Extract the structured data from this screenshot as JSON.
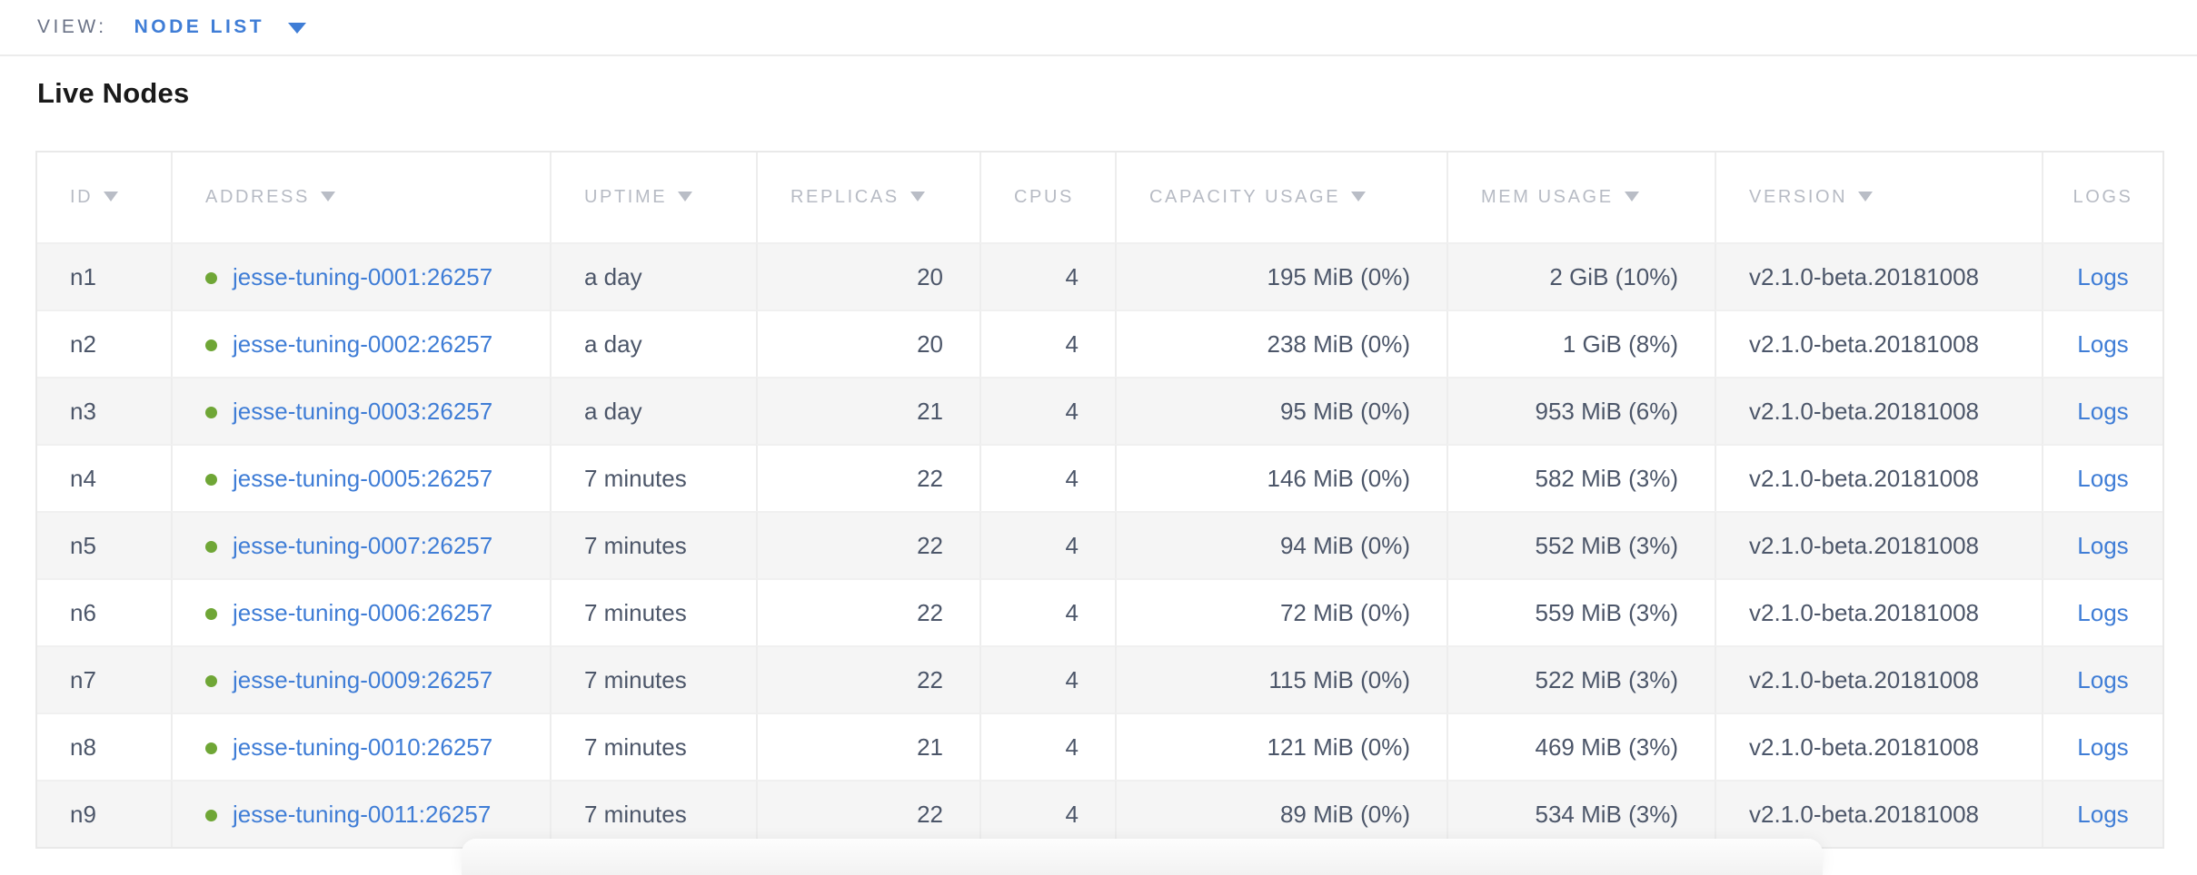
{
  "view_bar": {
    "label": "VIEW:",
    "selected": "NODE LIST"
  },
  "section": {
    "title": "Live Nodes"
  },
  "table": {
    "columns": [
      {
        "key": "id",
        "label": "ID",
        "sortable": true
      },
      {
        "key": "address",
        "label": "ADDRESS",
        "sortable": true
      },
      {
        "key": "uptime",
        "label": "UPTIME",
        "sortable": true
      },
      {
        "key": "replicas",
        "label": "REPLICAS",
        "sortable": true
      },
      {
        "key": "cpus",
        "label": "CPUS",
        "sortable": false
      },
      {
        "key": "capacity",
        "label": "CAPACITY USAGE",
        "sortable": true
      },
      {
        "key": "mem",
        "label": "MEM USAGE",
        "sortable": true
      },
      {
        "key": "version",
        "label": "VERSION",
        "sortable": true
      },
      {
        "key": "logs",
        "label": "LOGS",
        "sortable": false
      }
    ],
    "rows": [
      {
        "id": "n1",
        "status": "live",
        "address": "jesse-tuning-0001:26257",
        "uptime": "a day",
        "replicas": "20",
        "cpus": "4",
        "capacity": "195 MiB (0%)",
        "mem": "2 GiB (10%)",
        "version": "v2.1.0-beta.20181008",
        "logs_label": "Logs"
      },
      {
        "id": "n2",
        "status": "live",
        "address": "jesse-tuning-0002:26257",
        "uptime": "a day",
        "replicas": "20",
        "cpus": "4",
        "capacity": "238 MiB (0%)",
        "mem": "1 GiB (8%)",
        "version": "v2.1.0-beta.20181008",
        "logs_label": "Logs"
      },
      {
        "id": "n3",
        "status": "live",
        "address": "jesse-tuning-0003:26257",
        "uptime": "a day",
        "replicas": "21",
        "cpus": "4",
        "capacity": "95 MiB (0%)",
        "mem": "953 MiB (6%)",
        "version": "v2.1.0-beta.20181008",
        "logs_label": "Logs"
      },
      {
        "id": "n4",
        "status": "live",
        "address": "jesse-tuning-0005:26257",
        "uptime": "7 minutes",
        "replicas": "22",
        "cpus": "4",
        "capacity": "146 MiB (0%)",
        "mem": "582 MiB (3%)",
        "version": "v2.1.0-beta.20181008",
        "logs_label": "Logs"
      },
      {
        "id": "n5",
        "status": "live",
        "address": "jesse-tuning-0007:26257",
        "uptime": "7 minutes",
        "replicas": "22",
        "cpus": "4",
        "capacity": "94 MiB (0%)",
        "mem": "552 MiB (3%)",
        "version": "v2.1.0-beta.20181008",
        "logs_label": "Logs"
      },
      {
        "id": "n6",
        "status": "live",
        "address": "jesse-tuning-0006:26257",
        "uptime": "7 minutes",
        "replicas": "22",
        "cpus": "4",
        "capacity": "72 MiB (0%)",
        "mem": "559 MiB (3%)",
        "version": "v2.1.0-beta.20181008",
        "logs_label": "Logs"
      },
      {
        "id": "n7",
        "status": "live",
        "address": "jesse-tuning-0009:26257",
        "uptime": "7 minutes",
        "replicas": "22",
        "cpus": "4",
        "capacity": "115 MiB (0%)",
        "mem": "522 MiB (3%)",
        "version": "v2.1.0-beta.20181008",
        "logs_label": "Logs"
      },
      {
        "id": "n8",
        "status": "live",
        "address": "jesse-tuning-0010:26257",
        "uptime": "7 minutes",
        "replicas": "21",
        "cpus": "4",
        "capacity": "121 MiB (0%)",
        "mem": "469 MiB (3%)",
        "version": "v2.1.0-beta.20181008",
        "logs_label": "Logs"
      },
      {
        "id": "n9",
        "status": "live",
        "address": "jesse-tuning-0011:26257",
        "uptime": "7 minutes",
        "replicas": "22",
        "cpus": "4",
        "capacity": "89 MiB (0%)",
        "mem": "534 MiB (3%)",
        "version": "v2.1.0-beta.20181008",
        "logs_label": "Logs"
      }
    ]
  },
  "colors": {
    "accent_blue": "#3f7dd6",
    "live_green": "#6fa636",
    "header_text": "#b7bbc4",
    "body_text": "#4c5669",
    "row_alt_bg": "#f5f5f5"
  }
}
